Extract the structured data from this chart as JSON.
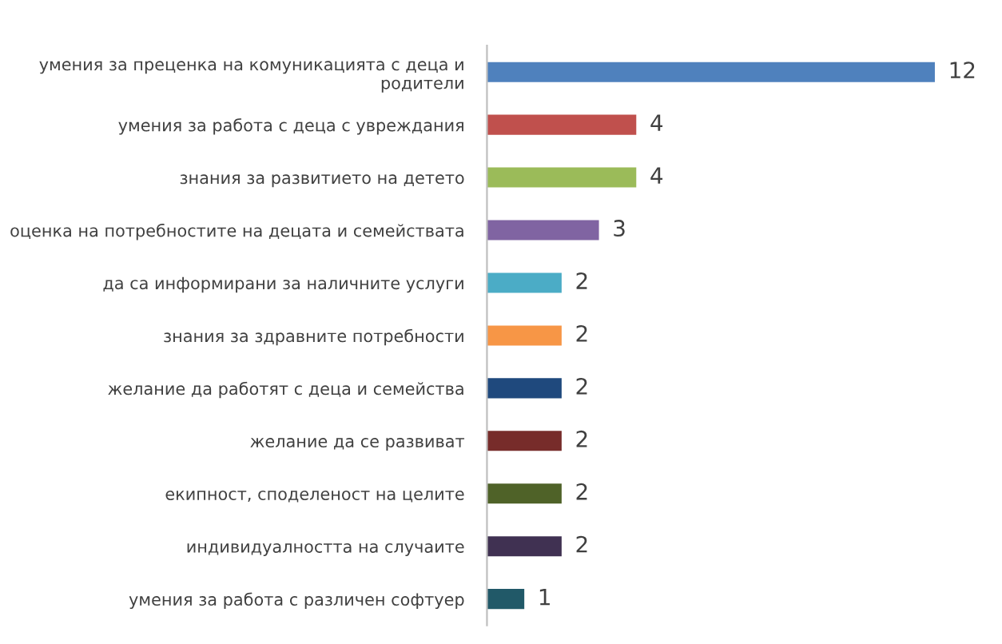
{
  "chart_data": {
    "type": "bar",
    "orientation": "horizontal",
    "data_labels": true,
    "grid": false,
    "legend": false,
    "tick_labels": "y",
    "categories": [
      "умения за преценка на комуникацията с деца и родители",
      "умения за работа с деца с увреждания",
      "знания за развитието на детето",
      "оценка на потребностите на децата и семействата",
      "да са информирани за наличните услуги",
      "знания за здравните потребности",
      "желание да работят с деца и семейства",
      "желание да се развиват",
      "екипност, споделеност на целите",
      "индивидуалността на случаите",
      "умения за работа с различен софтуер"
    ],
    "values": [
      12,
      4,
      4,
      3,
      2,
      2,
      2,
      2,
      2,
      2,
      1
    ],
    "colors": [
      "#4f81bd",
      "#c0504d",
      "#9bbb59",
      "#8064a2",
      "#4bacc6",
      "#f79646",
      "#1f497d",
      "#772c2a",
      "#4f6228",
      "#403152",
      "#215968"
    ],
    "xlim": [
      0,
      12
    ]
  }
}
